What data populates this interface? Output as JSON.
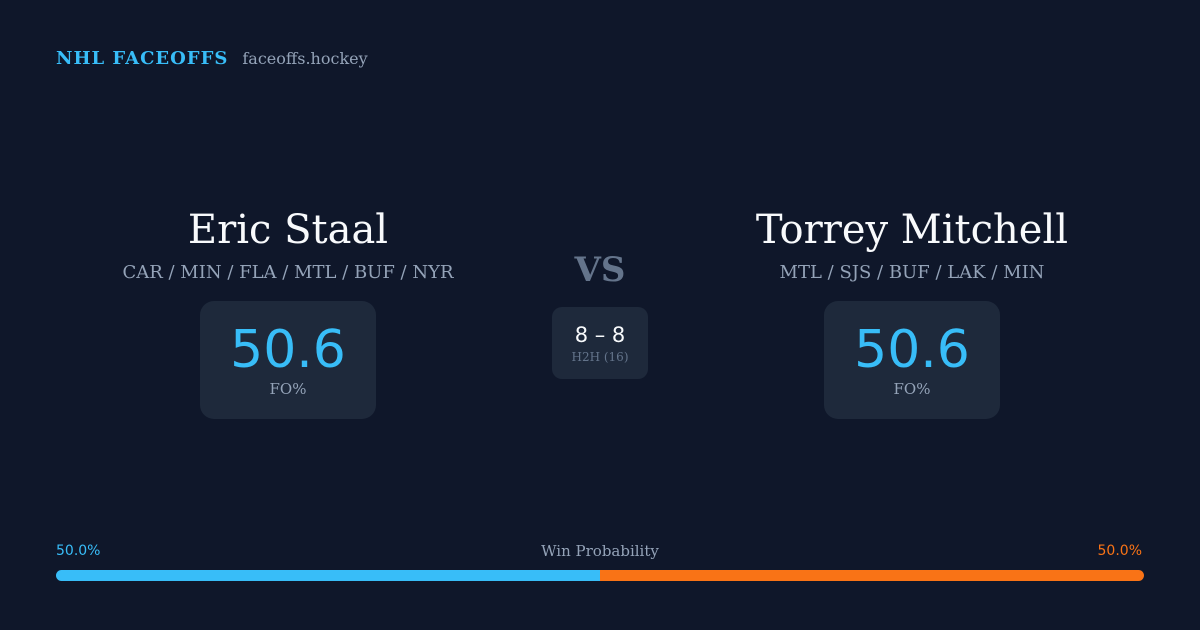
{
  "header": {
    "brand": "NHL FACEOFFS",
    "site": "faceoffs.hockey"
  },
  "player_left": {
    "name": "Eric Staal",
    "teams": "CAR / MIN / FLA / MTL / BUF / NYR",
    "stat_value": "50.6",
    "stat_label": "FO%"
  },
  "player_right": {
    "name": "Torrey Mitchell",
    "teams": "MTL / SJS / BUF / LAK / MIN",
    "stat_value": "50.6",
    "stat_label": "FO%"
  },
  "versus": {
    "label": "VS",
    "h2h_score": "8 – 8",
    "h2h_label": "H2H (16)"
  },
  "win_probability": {
    "title": "Win Probability",
    "left_label": "50.0%",
    "right_label": "50.0%",
    "left_fraction": 0.5,
    "right_fraction": 0.5
  },
  "colors": {
    "background": "#0f172a",
    "accent_left": "#38bdf8",
    "accent_right": "#f97316",
    "card": "#1e293b"
  }
}
